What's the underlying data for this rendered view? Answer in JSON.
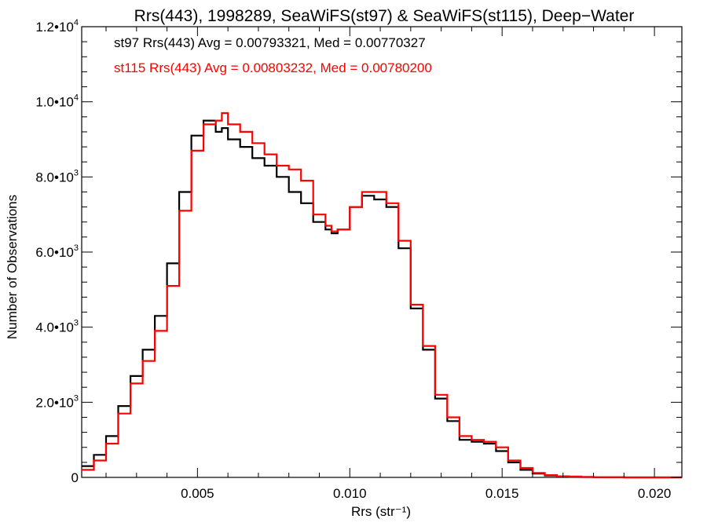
{
  "chart_data": {
    "type": "line",
    "title": "Rrs(443), 1998289, SeaWiFS(st97) & SeaWiFS(st115), Deep−Water",
    "xlabel": "Rrs (str⁻¹)",
    "ylabel": "Number of Observations",
    "xlim": [
      0.0012,
      0.0209
    ],
    "ylim": [
      0,
      12000
    ],
    "x_ticks": [
      {
        "value": 0.005,
        "label": "0.005"
      },
      {
        "value": 0.01,
        "label": "0.010"
      },
      {
        "value": 0.015,
        "label": "0.015"
      },
      {
        "value": 0.02,
        "label": "0.020"
      }
    ],
    "y_ticks": [
      {
        "value": 0,
        "mant": "0",
        "exp": ""
      },
      {
        "value": 2000,
        "mant": "2.0•10",
        "exp": "3"
      },
      {
        "value": 4000,
        "mant": "4.0•10",
        "exp": "3"
      },
      {
        "value": 6000,
        "mant": "6.0•10",
        "exp": "3"
      },
      {
        "value": 8000,
        "mant": "8.0•10",
        "exp": "3"
      },
      {
        "value": 10000,
        "mant": "1.0•10",
        "exp": "4"
      },
      {
        "value": 12000,
        "mant": "1.2•10",
        "exp": "4"
      }
    ],
    "annotations": [
      {
        "text": "st97 Rrs(443) Avg = 0.00793321, Med = 0.00770327",
        "color": "#000000"
      },
      {
        "text": "st115 Rrs(443) Avg = 0.00803232, Med = 0.00780200",
        "color": "#ff0000"
      }
    ],
    "grid": false,
    "step": true,
    "series": [
      {
        "color": "#000000",
        "x": [
          0.0012,
          0.0016,
          0.002,
          0.0024,
          0.0028,
          0.0032,
          0.0036,
          0.004,
          0.0044,
          0.0048,
          0.0052,
          0.0056,
          0.0058,
          0.006,
          0.0064,
          0.0068,
          0.0072,
          0.0076,
          0.008,
          0.0084,
          0.0088,
          0.0092,
          0.0094,
          0.0096,
          0.01,
          0.0104,
          0.0108,
          0.0112,
          0.0116,
          0.012,
          0.0124,
          0.0128,
          0.0132,
          0.0136,
          0.014,
          0.0144,
          0.0148,
          0.0152,
          0.0156,
          0.016,
          0.0164,
          0.0168,
          0.0172,
          0.0176,
          0.018,
          0.019,
          0.02,
          0.0209
        ],
        "y": [
          300,
          600,
          1100,
          1900,
          2700,
          3400,
          4300,
          5700,
          7600,
          9100,
          9500,
          9200,
          9300,
          9000,
          8800,
          8500,
          8300,
          8000,
          7600,
          7300,
          6800,
          6600,
          6500,
          6600,
          7200,
          7500,
          7400,
          7200,
          6100,
          4500,
          3400,
          2100,
          1500,
          1000,
          950,
          900,
          700,
          400,
          200,
          100,
          50,
          30,
          20,
          10,
          5,
          0,
          0,
          0
        ]
      },
      {
        "color": "#ff0000",
        "x": [
          0.0012,
          0.0016,
          0.002,
          0.0024,
          0.0028,
          0.0032,
          0.0036,
          0.004,
          0.0044,
          0.0048,
          0.0052,
          0.0056,
          0.0058,
          0.006,
          0.0064,
          0.0068,
          0.0072,
          0.0076,
          0.008,
          0.0084,
          0.0088,
          0.0092,
          0.0094,
          0.0096,
          0.01,
          0.0104,
          0.0108,
          0.0112,
          0.0116,
          0.012,
          0.0124,
          0.0128,
          0.0132,
          0.0136,
          0.014,
          0.0144,
          0.0148,
          0.0152,
          0.0156,
          0.016,
          0.0164,
          0.0168,
          0.0172,
          0.0176,
          0.018,
          0.019,
          0.02,
          0.0209
        ],
        "y": [
          200,
          450,
          900,
          1700,
          2500,
          3100,
          3900,
          5100,
          7100,
          8700,
          9400,
          9500,
          9700,
          9400,
          9200,
          8900,
          8600,
          8300,
          8200,
          7900,
          7000,
          6700,
          6550,
          6600,
          7200,
          7600,
          7600,
          7300,
          6300,
          4600,
          3500,
          2200,
          1600,
          1100,
          1000,
          950,
          800,
          450,
          250,
          120,
          60,
          30,
          20,
          10,
          5,
          0,
          0,
          0
        ]
      }
    ]
  }
}
